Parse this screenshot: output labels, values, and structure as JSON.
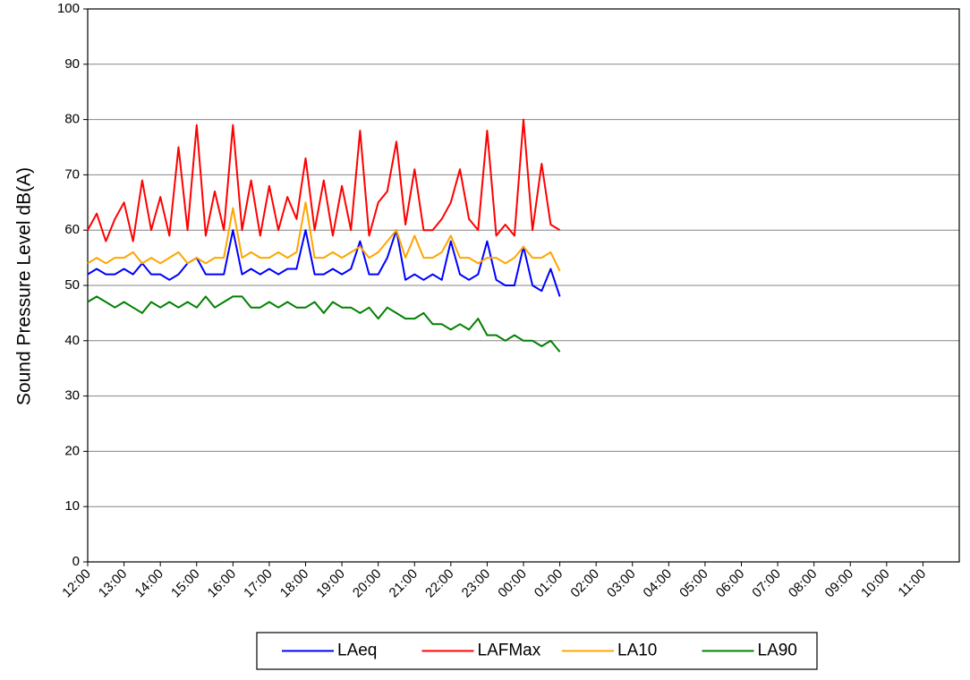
{
  "chart_data": {
    "type": "line",
    "y_label": "Sound Pressure Level dB(A)",
    "x": [
      0,
      0.25,
      0.5,
      0.75,
      1,
      1.25,
      1.5,
      1.75,
      2,
      2.25,
      2.5,
      2.75,
      3,
      3.25,
      3.5,
      3.75,
      4,
      4.25,
      4.5,
      4.75,
      5,
      5.25,
      5.5,
      5.75,
      6,
      6.25,
      6.5,
      6.75,
      7,
      7.25,
      7.5,
      7.75,
      8,
      8.25,
      8.5,
      8.75,
      9,
      9.25,
      9.5,
      9.75,
      10,
      10.25,
      10.5,
      10.75,
      11,
      11.25,
      11.5,
      11.75,
      12,
      12.25,
      12.5,
      12.75,
      13
    ],
    "series": [
      {
        "name": "LAeq",
        "color": "#0000ff",
        "values": [
          52,
          53,
          52,
          52,
          53,
          52,
          54,
          52,
          52,
          51,
          52,
          54,
          55,
          52,
          52,
          52,
          60,
          52,
          53,
          52,
          53,
          52,
          53,
          53,
          60,
          52,
          52,
          53,
          52,
          53,
          58,
          52,
          52,
          55,
          60,
          51,
          52,
          51,
          52,
          51,
          58,
          52,
          51,
          52,
          58,
          51,
          50,
          50,
          57,
          50,
          49,
          53,
          48
        ]
      },
      {
        "name": "LAFMax",
        "color": "#ff0000",
        "values": [
          60,
          63,
          58,
          62,
          65,
          58,
          69,
          60,
          66,
          59,
          75,
          60,
          79,
          59,
          67,
          60,
          79,
          60,
          69,
          59,
          68,
          60,
          66,
          62,
          73,
          60,
          69,
          59,
          68,
          60,
          78,
          59,
          65,
          67,
          76,
          61,
          71,
          60,
          60,
          62,
          65,
          71,
          62,
          60,
          78,
          59,
          61,
          59,
          80,
          60,
          72,
          61,
          60
        ]
      },
      {
        "name": "LA10",
        "color": "#ffa500",
        "values": [
          54,
          55,
          54,
          55,
          55,
          56,
          54,
          55,
          54,
          55,
          56,
          54,
          55,
          54,
          55,
          55,
          64,
          55,
          56,
          55,
          55,
          56,
          55,
          56,
          65,
          55,
          55,
          56,
          55,
          56,
          57,
          55,
          56,
          58,
          60,
          55,
          59,
          55,
          55,
          56,
          59,
          55,
          55,
          54,
          55,
          55,
          54,
          55,
          57,
          55,
          55,
          56,
          52.6
        ]
      },
      {
        "name": "LA90",
        "color": "#008000",
        "values": [
          47,
          48,
          47,
          46,
          47,
          46,
          45,
          47,
          46,
          47,
          46,
          47,
          46,
          48,
          46,
          47,
          48,
          48,
          46,
          46,
          47,
          46,
          47,
          46,
          46,
          47,
          45,
          47,
          46,
          46,
          45,
          46,
          44,
          46,
          45,
          44,
          44,
          45,
          43,
          43,
          42,
          43,
          42,
          44,
          41,
          41,
          40,
          41,
          40,
          40,
          39,
          40,
          38
        ]
      }
    ],
    "xlim": [
      0,
      24
    ],
    "xticks": [
      {
        "value": 0,
        "label": "12:00"
      },
      {
        "value": 1,
        "label": "13:00"
      },
      {
        "value": 2,
        "label": "14:00"
      },
      {
        "value": 3,
        "label": "15:00"
      },
      {
        "value": 4,
        "label": "16:00"
      },
      {
        "value": 5,
        "label": "17:00"
      },
      {
        "value": 6,
        "label": "18:00"
      },
      {
        "value": 7,
        "label": "19:00"
      },
      {
        "value": 8,
        "label": "20:00"
      },
      {
        "value": 9,
        "label": "21:00"
      },
      {
        "value": 10,
        "label": "22:00"
      },
      {
        "value": 11,
        "label": "23:00"
      },
      {
        "value": 12,
        "label": "00:00"
      },
      {
        "value": 13,
        "label": "01:00"
      },
      {
        "value": 14,
        "label": "02:00"
      },
      {
        "value": 15,
        "label": "03:00"
      },
      {
        "value": 16,
        "label": "04:00"
      },
      {
        "value": 17,
        "label": "05:00"
      },
      {
        "value": 18,
        "label": "06:00"
      },
      {
        "value": 19,
        "label": "07:00"
      },
      {
        "value": 20,
        "label": "08:00"
      },
      {
        "value": 21,
        "label": "09:00"
      },
      {
        "value": 22,
        "label": "10:00"
      },
      {
        "value": 23,
        "label": "11:00"
      }
    ],
    "ylim": [
      0,
      100
    ],
    "yticks": [
      0,
      10,
      20,
      30,
      40,
      50,
      60,
      70,
      80,
      90,
      100
    ],
    "grid": true,
    "legend": "bottom"
  }
}
